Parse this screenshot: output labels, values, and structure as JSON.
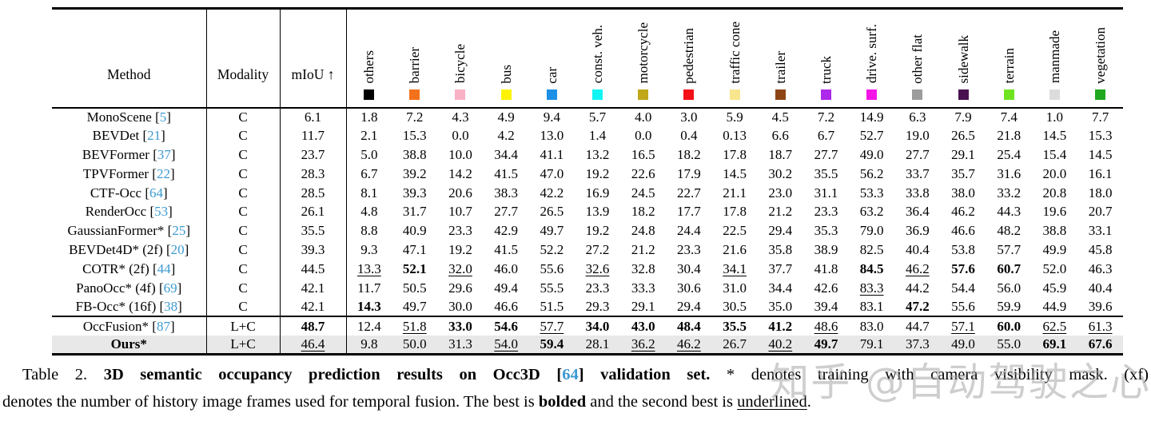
{
  "colors": {
    "citation_blue": "#3D9AD1",
    "shaded_row_bg": "#E8E8E8",
    "watermark_gray": "#9e9e9e"
  },
  "watermark": {
    "text": "知乎 @自动驾驶之心"
  },
  "table": {
    "header": {
      "method": "Method",
      "modality": "Modality",
      "miou": "mIoU ↑"
    },
    "classes": [
      {
        "label": "others",
        "color": "#000000"
      },
      {
        "label": "barrier",
        "color": "#F4711C"
      },
      {
        "label": "bicycle",
        "color": "#F9B2C5"
      },
      {
        "label": "bus",
        "color": "#FDF300"
      },
      {
        "label": "car",
        "color": "#1C8FE6"
      },
      {
        "label": "const. veh.",
        "color": "#10F4F4"
      },
      {
        "label": "motorcycle",
        "color": "#C0A818"
      },
      {
        "label": "pedestrian",
        "color": "#F41016"
      },
      {
        "label": "traffic cone",
        "color": "#F8E68E"
      },
      {
        "label": "trailer",
        "color": "#8D4514"
      },
      {
        "label": "truck",
        "color": "#AC28EA"
      },
      {
        "label": "drive. surf.",
        "color": "#F414E8"
      },
      {
        "label": "other flat",
        "color": "#9C9C9C"
      },
      {
        "label": "sidewalk",
        "color": "#4A1150"
      },
      {
        "label": "terrain",
        "color": "#70E420"
      },
      {
        "label": "manmade",
        "color": "#DCDCDC"
      },
      {
        "label": "vegetation",
        "color": "#20A820"
      }
    ],
    "rows": [
      {
        "name": "MonoScene",
        "cite": "5",
        "group": 1,
        "modality": "C",
        "miou": "6.1",
        "values": [
          "1.8",
          "7.2",
          "4.3",
          "4.9",
          "9.4",
          "5.7",
          "4.0",
          "3.0",
          "5.9",
          "4.5",
          "7.2",
          "14.9",
          "6.3",
          "7.9",
          "7.4",
          "1.0",
          "7.7"
        ]
      },
      {
        "name": "BEVDet",
        "cite": "21",
        "group": 1,
        "modality": "C",
        "miou": "11.7",
        "values": [
          "2.1",
          "15.3",
          "0.0",
          "4.2",
          "13.0",
          "1.4",
          "0.0",
          "0.4",
          "0.13",
          "6.6",
          "6.7",
          "52.7",
          "19.0",
          "26.5",
          "21.8",
          "14.5",
          "15.3"
        ]
      },
      {
        "name": "BEVFormer",
        "cite": "37",
        "group": 1,
        "modality": "C",
        "miou": "23.7",
        "values": [
          "5.0",
          "38.8",
          "10.0",
          "34.4",
          "41.1",
          "13.2",
          "16.5",
          "18.2",
          "17.8",
          "18.7",
          "27.7",
          "49.0",
          "27.7",
          "29.1",
          "25.4",
          "15.4",
          "14.5"
        ]
      },
      {
        "name": "TPVFormer",
        "cite": "22",
        "group": 1,
        "modality": "C",
        "miou": "28.3",
        "values": [
          "6.7",
          "39.2",
          "14.2",
          "41.5",
          "47.0",
          "19.2",
          "22.6",
          "17.9",
          "14.5",
          "30.2",
          "35.5",
          "56.2",
          "33.7",
          "35.7",
          "31.6",
          "20.0",
          "16.1"
        ]
      },
      {
        "name": "CTF-Occ",
        "cite": "64",
        "group": 1,
        "modality": "C",
        "miou": "28.5",
        "values": [
          "8.1",
          "39.3",
          "20.6",
          "38.3",
          "42.2",
          "16.9",
          "24.5",
          "22.7",
          "21.1",
          "23.0",
          "31.1",
          "53.3",
          "33.8",
          "38.0",
          "33.2",
          "20.8",
          "18.0"
        ]
      },
      {
        "name": "RenderOcc",
        "cite": "53",
        "group": 1,
        "modality": "C",
        "miou": "26.1",
        "values": [
          "4.8",
          "31.7",
          "10.7",
          "27.7",
          "26.5",
          "13.9",
          "18.2",
          "17.7",
          "17.8",
          "21.2",
          "23.3",
          "63.2",
          "36.4",
          "46.2",
          "44.3",
          "19.6",
          "20.7"
        ]
      },
      {
        "name": "GaussianFormer*",
        "cite": "25",
        "group": 1,
        "modality": "C",
        "miou": "35.5",
        "values": [
          "8.8",
          "40.9",
          "23.3",
          "42.9",
          "49.7",
          "19.2",
          "24.8",
          "24.4",
          "22.5",
          "29.4",
          "35.3",
          "79.0",
          "36.9",
          "46.6",
          "48.2",
          "38.8",
          "33.1"
        ]
      },
      {
        "name": "BEVDet4D* (2f)",
        "cite": "20",
        "group": 1,
        "modality": "C",
        "miou": "39.3",
        "values": [
          "9.3",
          "47.1",
          "19.2",
          "41.5",
          "52.2",
          "27.2",
          "21.2",
          "23.3",
          "21.6",
          "35.8",
          "38.9",
          "82.5",
          "40.4",
          "53.8",
          "57.7",
          "49.9",
          "45.8"
        ]
      },
      {
        "name": "COTR* (2f)",
        "cite": "44",
        "group": 1,
        "modality": "C",
        "miou": "44.5",
        "values": [
          "13.3|u",
          "52.1|b",
          "32.0|u",
          "46.0",
          "55.6",
          "32.6|u",
          "32.8",
          "30.4",
          "34.1|u",
          "37.7",
          "41.8",
          "84.5|b",
          "46.2|u",
          "57.6|b",
          "60.7|b",
          "52.0",
          "46.3"
        ]
      },
      {
        "name": "PanoOcc* (4f)",
        "cite": "69",
        "group": 1,
        "modality": "C",
        "miou": "42.1",
        "values": [
          "11.7",
          "50.5",
          "29.6",
          "49.4",
          "55.5",
          "23.3",
          "33.3",
          "30.6",
          "31.0",
          "34.4",
          "42.6",
          "83.3|u",
          "44.2",
          "54.4",
          "56.0",
          "45.9",
          "40.4"
        ]
      },
      {
        "name": "FB-Occ* (16f)",
        "cite": "38",
        "group": 1,
        "modality": "C",
        "miou": "42.1",
        "values": [
          "14.3|b",
          "49.7",
          "30.0",
          "46.6",
          "51.5",
          "29.3",
          "29.1",
          "29.4",
          "30.5",
          "35.0",
          "39.4",
          "83.1",
          "47.2|b",
          "55.6",
          "59.9",
          "44.9",
          "39.6"
        ]
      },
      {
        "name": "OccFusion*",
        "cite": "87",
        "group": 2,
        "modality": "L+C",
        "miou": "48.7|b",
        "values": [
          "12.4",
          "51.8|u",
          "33.0|b",
          "54.6|b",
          "57.7|u",
          "34.0|b",
          "43.0|b",
          "48.4|b",
          "35.5|b",
          "41.2|b",
          "48.6|u",
          "83.0",
          "44.7",
          "57.1|u",
          "60.0|b",
          "62.5|u",
          "61.3|u"
        ]
      },
      {
        "name": "Ours*",
        "cite": null,
        "bold": true,
        "shaded": true,
        "group": 2,
        "modality": "L+C",
        "miou": "46.4|u",
        "values": [
          "9.8",
          "50.0",
          "31.3",
          "54.0|u",
          "59.4|b",
          "28.1",
          "36.2|u",
          "46.2|u",
          "26.7",
          "40.2|u",
          "49.7|b",
          "79.1",
          "37.3",
          "49.0",
          "55.0",
          "69.1|b",
          "67.6|b"
        ]
      }
    ]
  },
  "caption": {
    "line1": [
      {
        "t": "Table 2. ",
        "s": ""
      },
      {
        "t": "3D semantic occupancy prediction results on Occ3D [",
        "s": "b"
      },
      {
        "t": "64",
        "s": "bc"
      },
      {
        "t": "] validation set.",
        "s": "b"
      },
      {
        "t": " * denotes training with camera visibility mask. (xf)",
        "s": ""
      }
    ],
    "line2": [
      {
        "t": "denotes the number of history image frames used for temporal fusion. The best is ",
        "s": ""
      },
      {
        "t": "bolded",
        "s": "b"
      },
      {
        "t": " and the second best is ",
        "s": ""
      },
      {
        "t": "underlined",
        "s": "u"
      },
      {
        "t": ".",
        "s": ""
      }
    ]
  }
}
